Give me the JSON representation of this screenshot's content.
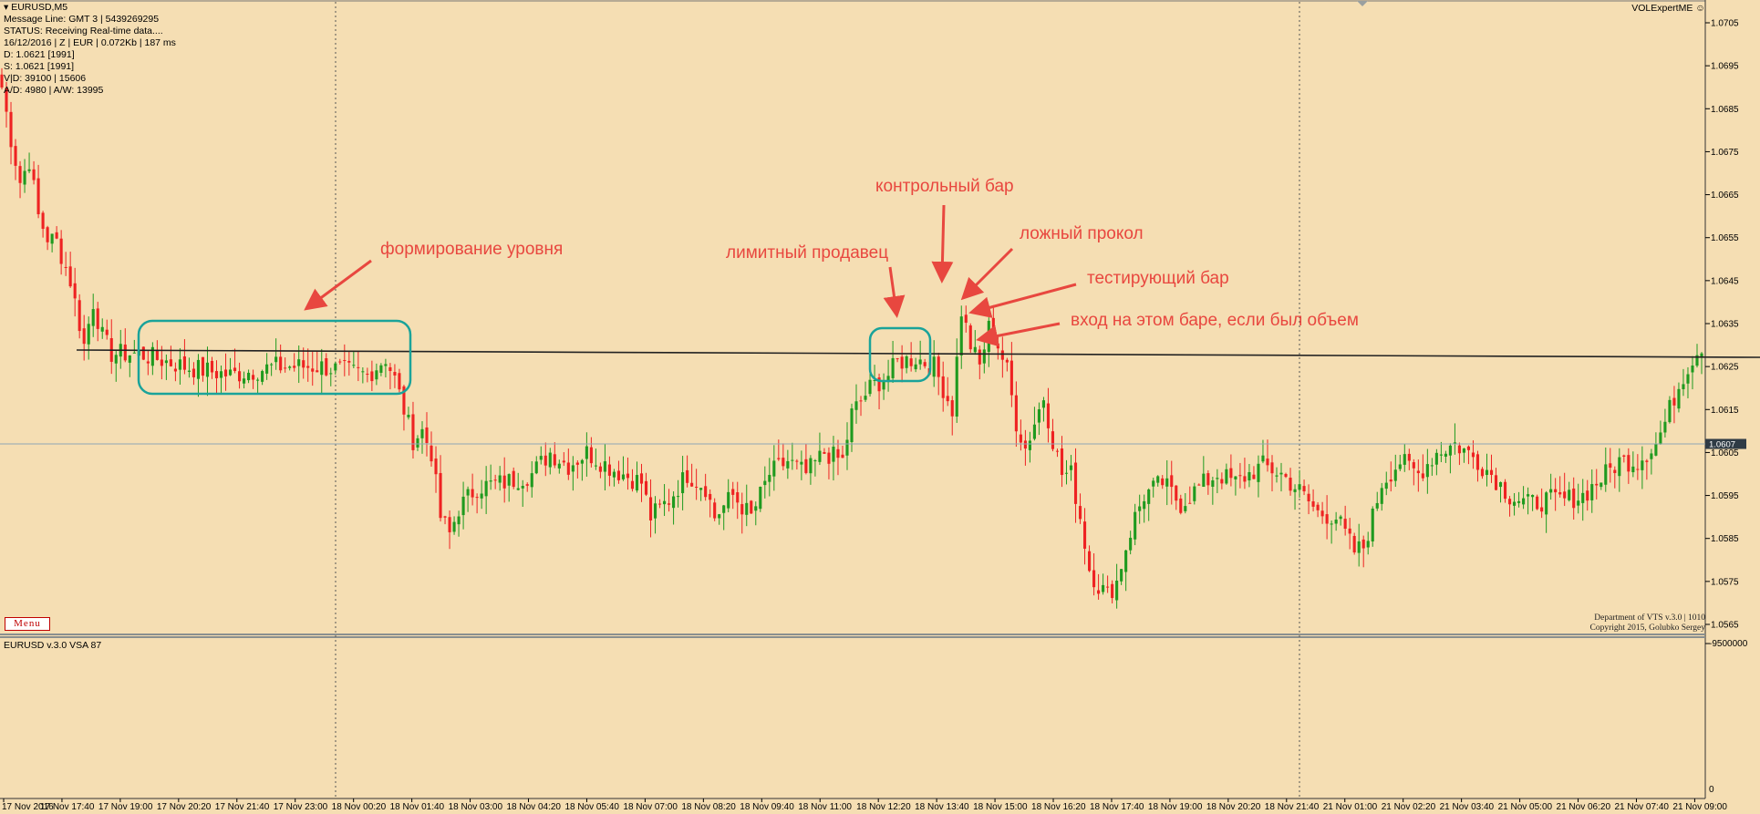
{
  "window": {
    "symbol": "EURUSD,M5",
    "vol_expert": "VOLExpertME"
  },
  "info_panel": {
    "lines": [
      "Message Line: GMT 3 | 5439269295",
      "STATUS:  Receiving Real-time data....",
      "16/12/2016 | Z | EUR | 0.072Kb | 187 ms",
      "D: 1.0621  [1991]",
      "S: 1.0621  [1991]",
      "V|D: 39100 | 15606",
      "A/D: 4980 | A/W: 13995"
    ]
  },
  "menu_button": {
    "label": "Menu"
  },
  "copyright": {
    "line1": "Department of VTS  v.3.0 | 1010",
    "line2": "Copyright 2015, Golubko Sergey"
  },
  "indicator": {
    "label": "EURUSD v.3.0 VSA 87",
    "axis_top": "-9500000",
    "axis_bottom": "0"
  },
  "price_axis": {
    "ticks": [
      "1.0705",
      "1.0695",
      "1.0685",
      "1.0675",
      "1.0665",
      "1.0655",
      "1.0645",
      "1.0635",
      "1.0625",
      "1.0615",
      "1.0605",
      "1.0595",
      "1.0585",
      "1.0575",
      "1.0565"
    ],
    "current_price": "1.0607"
  },
  "time_axis": {
    "ticks": [
      "17 Nov 2016",
      "17 Nov 17:40",
      "17 Nov 19:00",
      "17 Nov 20:20",
      "17 Nov 21:40",
      "17 Nov 23:00",
      "18 Nov 00:20",
      "18 Nov 01:40",
      "18 Nov 03:00",
      "18 Nov 04:20",
      "18 Nov 05:40",
      "18 Nov 07:00",
      "18 Nov 08:20",
      "18 Nov 09:40",
      "18 Nov 11:00",
      "18 Nov 12:20",
      "18 Nov 13:40",
      "18 Nov 15:00",
      "18 Nov 16:20",
      "18 Nov 17:40",
      "18 Nov 19:00",
      "18 Nov 20:20",
      "18 Nov 21:40",
      "21 Nov 01:00",
      "21 Nov 02:20",
      "21 Nov 03:40",
      "21 Nov 05:00",
      "21 Nov 06:20",
      "21 Nov 07:40",
      "21 Nov 09:00"
    ]
  },
  "annotations": {
    "level_forming": "формирование уровня",
    "limit_seller": "лимитный продавец",
    "control_bar": "контрольный бар",
    "false_break": "ложный прокол",
    "test_bar": "тестирующий бар",
    "entry": "вход на этом баре, если был объем"
  },
  "chart_data": {
    "type": "candlestick",
    "symbol": "EURUSD",
    "timeframe": "M5",
    "ylim": [
      1.0561,
      1.0711
    ],
    "level": 1.0628,
    "current_price": 1.0607,
    "close_path": [
      [
        0,
        1.069
      ],
      [
        2,
        1.0678
      ],
      [
        4,
        1.0668
      ],
      [
        6,
        1.0673
      ],
      [
        8,
        1.066
      ],
      [
        10,
        1.0655
      ],
      [
        12,
        1.0654
      ],
      [
        15,
        1.0645
      ],
      [
        18,
        1.063
      ],
      [
        20,
        1.064
      ],
      [
        22,
        1.0632
      ],
      [
        24,
        1.0628
      ],
      [
        30,
        1.0628
      ],
      [
        40,
        1.0625
      ],
      [
        50,
        1.0623
      ],
      [
        60,
        1.0625
      ],
      [
        70,
        1.0625
      ],
      [
        80,
        1.0623
      ],
      [
        84,
        1.0627
      ],
      [
        86,
        1.0622
      ],
      [
        88,
        1.0615
      ],
      [
        90,
        1.0608
      ],
      [
        92,
        1.061
      ],
      [
        94,
        1.0605
      ],
      [
        96,
        1.059
      ],
      [
        98,
        1.0586
      ],
      [
        100,
        1.0592
      ],
      [
        104,
        1.0597
      ],
      [
        110,
        1.0598
      ],
      [
        116,
        1.06
      ],
      [
        120,
        1.0605
      ],
      [
        124,
        1.0602
      ],
      [
        128,
        1.0605
      ],
      [
        134,
        1.0601
      ],
      [
        140,
        1.0598
      ],
      [
        142,
        1.059
      ],
      [
        146,
        1.0594
      ],
      [
        150,
        1.06
      ],
      [
        154,
        1.0597
      ],
      [
        156,
        1.059
      ],
      [
        160,
        1.0595
      ],
      [
        164,
        1.059
      ],
      [
        168,
        1.06
      ],
      [
        172,
        1.0603
      ],
      [
        176,
        1.06
      ],
      [
        180,
        1.0605
      ],
      [
        184,
        1.0603
      ],
      [
        186,
        1.0614
      ],
      [
        190,
        1.062
      ],
      [
        194,
        1.0623
      ],
      [
        196,
        1.0626
      ],
      [
        200,
        1.0627
      ],
      [
        204,
        1.0625
      ],
      [
        206,
        1.062
      ],
      [
        208,
        1.0615
      ],
      [
        210,
        1.0638
      ],
      [
        212,
        1.063
      ],
      [
        214,
        1.0625
      ],
      [
        216,
        1.0634
      ],
      [
        218,
        1.063
      ],
      [
        220,
        1.0624
      ],
      [
        222,
        1.0612
      ],
      [
        224,
        1.0606
      ],
      [
        226,
        1.0612
      ],
      [
        228,
        1.0618
      ],
      [
        230,
        1.0608
      ],
      [
        232,
        1.06
      ],
      [
        234,
        1.06
      ],
      [
        236,
        1.059
      ],
      [
        238,
        1.0578
      ],
      [
        240,
        1.0574
      ],
      [
        242,
        1.0572
      ],
      [
        244,
        1.0575
      ],
      [
        246,
        1.0583
      ],
      [
        248,
        1.059
      ],
      [
        250,
        1.0595
      ],
      [
        254,
        1.0598
      ],
      [
        258,
        1.0593
      ],
      [
        262,
        1.0597
      ],
      [
        266,
        1.06
      ],
      [
        270,
        1.0598
      ],
      [
        276,
        1.0602
      ],
      [
        280,
        1.06
      ],
      [
        284,
        1.0596
      ],
      [
        288,
        1.0591
      ],
      [
        292,
        1.059
      ],
      [
        294,
        1.0586
      ],
      [
        296,
        1.0582
      ],
      [
        298,
        1.0583
      ],
      [
        300,
        1.059
      ],
      [
        302,
        1.0598
      ],
      [
        306,
        1.0603
      ],
      [
        310,
        1.06
      ],
      [
        314,
        1.0605
      ],
      [
        318,
        1.0607
      ],
      [
        322,
        1.0604
      ],
      [
        326,
        1.06
      ],
      [
        330,
        1.0595
      ],
      [
        334,
        1.0593
      ],
      [
        338,
        1.0594
      ],
      [
        342,
        1.0594
      ],
      [
        346,
        1.0595
      ],
      [
        350,
        1.0599
      ],
      [
        354,
        1.0603
      ],
      [
        358,
        1.0603
      ],
      [
        362,
        1.0607
      ],
      [
        364,
        1.0612
      ],
      [
        366,
        1.0618
      ],
      [
        368,
        1.0623
      ],
      [
        370,
        1.0627
      ],
      [
        372,
        1.063
      ]
    ],
    "n_bars": 373
  }
}
